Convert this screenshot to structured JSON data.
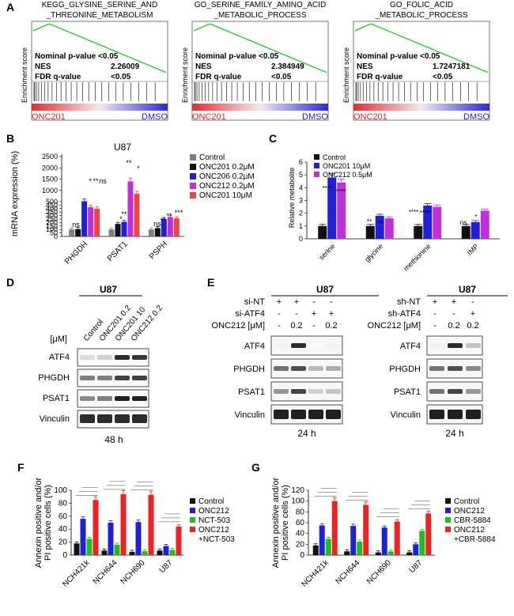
{
  "panels": {
    "A": "A",
    "B": "B",
    "C": "C",
    "D": "D",
    "E": "E",
    "F": "F",
    "G": "G"
  },
  "gsea": [
    {
      "title1": "KEGG_GLYSINE_SERINE_AND",
      "title2": "_THREONINE_METABOLISM",
      "p_label": "Nominal p-value <0.05",
      "nes_label": "NES",
      "nes_value": "2.26009",
      "fdr_label": "FDR q-value",
      "fdr_value": "<0.05",
      "ylabel": "Enrichment score",
      "left": "ONC201",
      "right": "DMSO"
    },
    {
      "title1": "GO_SERINE_FAMILY_AMINO_ACID",
      "title2": "_METABOLIC_PROCESS",
      "p_label": "Nominal p-value <0.05",
      "nes_label": "NES",
      "nes_value": "2.384949",
      "fdr_label": "FDR q-value",
      "fdr_value": "<0.05",
      "ylabel": "Enrichment score",
      "left": "ONC201",
      "right": "DMSO"
    },
    {
      "title1": "GO_FOLIC_ACID",
      "title2": "_METABOLIC_PROCESS",
      "p_label": "Nominal p-value <0.05",
      "nes_label": "NES",
      "nes_value": "1.7247181",
      "fdr_label": "FDR q-value",
      "fdr_value": "<0.05",
      "ylabel": "Enrichment score",
      "left": "ONC201",
      "right": "DMSO"
    }
  ],
  "panel_b": {
    "title": "U87",
    "ylabel": "mRNA expression (%)",
    "ytick_labels": [
      "0",
      "50",
      "100",
      "150",
      "200",
      "250",
      "300",
      "350",
      "400",
      "450",
      "500",
      "1000",
      "1500",
      "2000",
      "2500"
    ],
    "legend": [
      "Control",
      "ONC201 0.2μM",
      "ONC206 0.2μM",
      "ONC212 0.2μM",
      "ONC201 10μM"
    ],
    "colors": [
      "#7f7f7f",
      "#111111",
      "#1f1fd6",
      "#c030d8",
      "#ee4444"
    ]
  },
  "panel_c": {
    "ylabel": "Relative metabolite",
    "ytick_labels": [
      "0",
      "1",
      "2",
      "3",
      "4",
      "5",
      "6"
    ],
    "legend": [
      "Control",
      "ONC201 10μM",
      "ONC212 0.5μM"
    ],
    "colors": [
      "#111111",
      "#1f1fd6",
      "#c030d8"
    ]
  },
  "panel_d": {
    "cell": "U87",
    "unit": "[μM]",
    "lanes": [
      "Control",
      "ONC201 0.2",
      "ONC201 10",
      "ONC212 0.2"
    ],
    "proteins": [
      "ATF4",
      "PHGDH",
      "PSAT1",
      "Vinculin"
    ],
    "time": "48 h"
  },
  "panel_e": {
    "left": {
      "cell": "U87",
      "row1_label": "si-NT",
      "row2_label": "si-ATF4",
      "row3_label": "ONC212 [μM]",
      "row1": [
        "+",
        "+",
        "-",
        "-"
      ],
      "row2": [
        "-",
        "-",
        "+",
        "+"
      ],
      "row3": [
        "-",
        "0.2",
        "-",
        "0.2"
      ],
      "time": "24 h"
    },
    "right": {
      "cell": "U87",
      "row1_label": "sh-NT",
      "row2_label": "sh-ATF4",
      "row3_label": "ONC212 [μM]",
      "row1": [
        "+",
        "+",
        "-"
      ],
      "row2": [
        "-",
        "-",
        "+"
      ],
      "row3": [
        "-",
        "0.2",
        "0.2"
      ],
      "time": "24 h"
    },
    "proteins": [
      "ATF4",
      "PHGDH",
      "PSAT1",
      "Vinculin"
    ]
  },
  "panel_f": {
    "ylabel1": "Annexin positive and/or",
    "ylabel2": "PI positive cells (%)",
    "ytick_labels": [
      "0",
      "20",
      "40",
      "60",
      "80",
      "100"
    ],
    "legend": [
      "Control",
      "ONC212",
      "NCT-503",
      "ONC212",
      "+NCT-503"
    ],
    "colors": [
      "#111111",
      "#1f1fd6",
      "#22bb22",
      "#ee2222"
    ]
  },
  "panel_g": {
    "ylabel1": "Annexin positive and/or",
    "ylabel2": "PI positive cells (%)",
    "ytick_labels": [
      "0",
      "20",
      "40",
      "60",
      "80",
      "100",
      "120"
    ],
    "legend": [
      "Control",
      "ONC212",
      "CBR-5884",
      "ONC212",
      "+CBR-5884"
    ],
    "colors": [
      "#111111",
      "#1f1fd6",
      "#22bb22",
      "#ee2222"
    ]
  },
  "chart_data": [
    {
      "type": "bar",
      "panel": "B",
      "title": "U87",
      "xlabel": "",
      "ylabel": "mRNA expression (%)",
      "categories": [
        "PHGDH",
        "PSAT1",
        "PSPH"
      ],
      "series": [
        {
          "name": "Control",
          "values": [
            100,
            100,
            100
          ]
        },
        {
          "name": "ONC201 0.2μM",
          "values": [
            105,
            180,
            120
          ]
        },
        {
          "name": "ONC206 0.2μM",
          "values": [
            520,
            210,
            250
          ]
        },
        {
          "name": "ONC212 0.2μM",
          "values": [
            420,
            1400,
            280
          ]
        },
        {
          "name": "ONC201 10μM",
          "values": [
            400,
            850,
            260
          ]
        }
      ],
      "annotations": [
        "ns",
        "*",
        "**",
        "ns",
        "*",
        "**",
        "**",
        "*",
        "ns",
        "**",
        "**",
        "***"
      ]
    },
    {
      "type": "bar",
      "panel": "C",
      "ylabel": "Relative metabolite",
      "ylim": [
        0,
        6
      ],
      "categories": [
        "serine",
        "glycine",
        "methionine",
        "IMP"
      ],
      "series": [
        {
          "name": "Control",
          "values": [
            1.0,
            1.0,
            1.0,
            1.0
          ]
        },
        {
          "name": "ONC201 10μM",
          "values": [
            4.8,
            1.8,
            2.6,
            1.3
          ]
        },
        {
          "name": "ONC212 0.5μM",
          "values": [
            4.4,
            1.6,
            2.5,
            2.2
          ]
        }
      ],
      "annotations": [
        "****",
        "****",
        "**",
        "**",
        "****",
        "****",
        "ns",
        "*"
      ]
    },
    {
      "type": "bar",
      "panel": "F",
      "ylabel": "Annexin positive and/or PI positive cells (%)",
      "ylim": [
        0,
        100
      ],
      "categories": [
        "NCH421k",
        "NCH644",
        "NCH690",
        "U87"
      ],
      "series": [
        {
          "name": "Control",
          "values": [
            18,
            7,
            5,
            7
          ]
        },
        {
          "name": "ONC212",
          "values": [
            56,
            50,
            51,
            14
          ]
        },
        {
          "name": "NCT-503",
          "values": [
            25,
            16,
            6,
            8
          ]
        },
        {
          "name": "ONC212 +NCT-503",
          "values": [
            85,
            94,
            93,
            44
          ]
        }
      ]
    },
    {
      "type": "bar",
      "panel": "G",
      "ylabel": "Annexin positive and/or PI positive cells (%)",
      "ylim": [
        0,
        120
      ],
      "categories": [
        "NCH421k",
        "NCH644",
        "NCH690",
        "U87"
      ],
      "series": [
        {
          "name": "Control",
          "values": [
            18,
            7,
            5,
            5
          ]
        },
        {
          "name": "ONC212",
          "values": [
            55,
            54,
            51,
            20
          ]
        },
        {
          "name": "CBR-5884",
          "values": [
            30,
            25,
            7,
            45
          ]
        },
        {
          "name": "ONC212 +CBR-5884",
          "values": [
            100,
            93,
            62,
            77
          ]
        }
      ]
    }
  ]
}
